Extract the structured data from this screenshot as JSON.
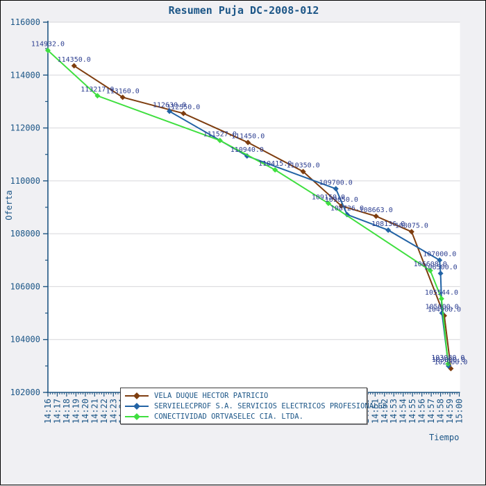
{
  "title": "Resumen Puja DC-2008-012",
  "axes": {
    "x_label": "Tiempo",
    "y_label": "Oferta"
  },
  "colors": {
    "background": "#f0f0f3",
    "plot_background": "#ffffff",
    "gridline": "#d6d6da",
    "axis": "#1f5582",
    "tick_text": "#1c5687",
    "title_text": "#1c5687",
    "data_label_text": "#2c3e90",
    "legend_text": "#1c5687",
    "series_brown": "#7e3d0f",
    "series_blue": "#2263a5",
    "series_green": "#3fdf3f"
  },
  "legend": {
    "items": [
      {
        "label": "VELA DUQUE HECTOR PATRICIO",
        "color": "#7e3d0f"
      },
      {
        "label": "SERVIELECPROF S.A. SERVICIOS ELECTRICOS PROFESIONALES",
        "color": "#2263a5"
      },
      {
        "label": "CONECTIVIDAD ORTVASELEC CIA. LTDA.",
        "color": "#3fdf3f"
      }
    ]
  },
  "chart_data": {
    "type": "line",
    "title": "Resumen Puja DC-2008-012",
    "xlabel": "Tiempo",
    "ylabel": "Oferta",
    "ylim": [
      102000,
      116000
    ],
    "y_major_step": 2000,
    "y_minor_step": 1000,
    "grid": "horizontal-only",
    "legend_position": "bottom, overlapping x tick labels",
    "x_start_minutes": 0,
    "x_end_minutes": 44,
    "x_ticks": [
      "14:16",
      "14:17",
      "14:18",
      "14:19",
      "14:20",
      "14:21",
      "14:22",
      "14:23",
      "14:24",
      "14:25",
      "14:26",
      "14:27",
      "14:28",
      "14:29",
      "14:30",
      "14:31",
      "14:32",
      "14:33",
      "14:34",
      "14:35",
      "14:36",
      "14:37",
      "14:38",
      "14:39",
      "14:40",
      "14:41",
      "14:42",
      "14:43",
      "14:44",
      "14:45",
      "14:46",
      "14:47",
      "14:48",
      "14:49",
      "14:50",
      "14:51",
      "14:52",
      "14:53",
      "14:54",
      "14:55",
      "14:56",
      "14:57",
      "14:58",
      "14:59",
      "15:00"
    ],
    "y_ticks": [
      102000,
      104000,
      106000,
      108000,
      110000,
      112000,
      114000,
      116000
    ],
    "series": [
      {
        "name": "VELA DUQUE HECTOR PATRICIO",
        "color": "#7e3d0f",
        "points": [
          {
            "t_min": 2.8,
            "value": 114350.0
          },
          {
            "t_min": 8.0,
            "value": 113160.0
          },
          {
            "t_min": 14.5,
            "value": 112550.0
          },
          {
            "t_min": 21.4,
            "value": 111450.0
          },
          {
            "t_min": 27.3,
            "value": 110350.0
          },
          {
            "t_min": 31.4,
            "value": 109050.0
          },
          {
            "t_min": 35.1,
            "value": 108663.0
          },
          {
            "t_min": 38.9,
            "value": 108075.0
          },
          {
            "t_min": 42.4,
            "value": 104900.0
          },
          {
            "t_min": 43.1,
            "value": 102900.0
          }
        ]
      },
      {
        "name": "SERVIELECPROF S.A. SERVICIOS ELECTRICOS PROFESIONALES",
        "color": "#2263a5",
        "points": [
          {
            "t_min": 13.0,
            "value": 112630.0
          },
          {
            "t_min": 21.3,
            "value": 110940.0
          },
          {
            "t_min": 30.8,
            "value": 109700.0
          },
          {
            "t_min": 32.0,
            "value": 108726.0
          },
          {
            "t_min": 36.4,
            "value": 108136.0
          },
          {
            "t_min": 41.9,
            "value": 107000.0
          },
          {
            "t_min": 42.0,
            "value": 106500.0
          },
          {
            "t_min": 42.15,
            "value": 105000.0
          },
          {
            "t_min": 42.85,
            "value": 103000.0
          }
        ]
      },
      {
        "name": "CONECTIVIDAD ORTVASELEC CIA. LTDA.",
        "color": "#3fdf3f",
        "points": [
          {
            "t_min": 0.0,
            "value": 114932.0
          },
          {
            "t_min": 5.3,
            "value": 113217.0
          },
          {
            "t_min": 18.4,
            "value": 111527.0
          },
          {
            "t_min": 24.3,
            "value": 110415.0
          },
          {
            "t_min": 30.0,
            "value": 109150.0
          },
          {
            "t_min": 40.9,
            "value": 106608.0
          },
          {
            "t_min": 42.1,
            "value": 105544.0
          },
          {
            "t_min": 42.8,
            "value": 103080.0
          }
        ]
      }
    ]
  }
}
